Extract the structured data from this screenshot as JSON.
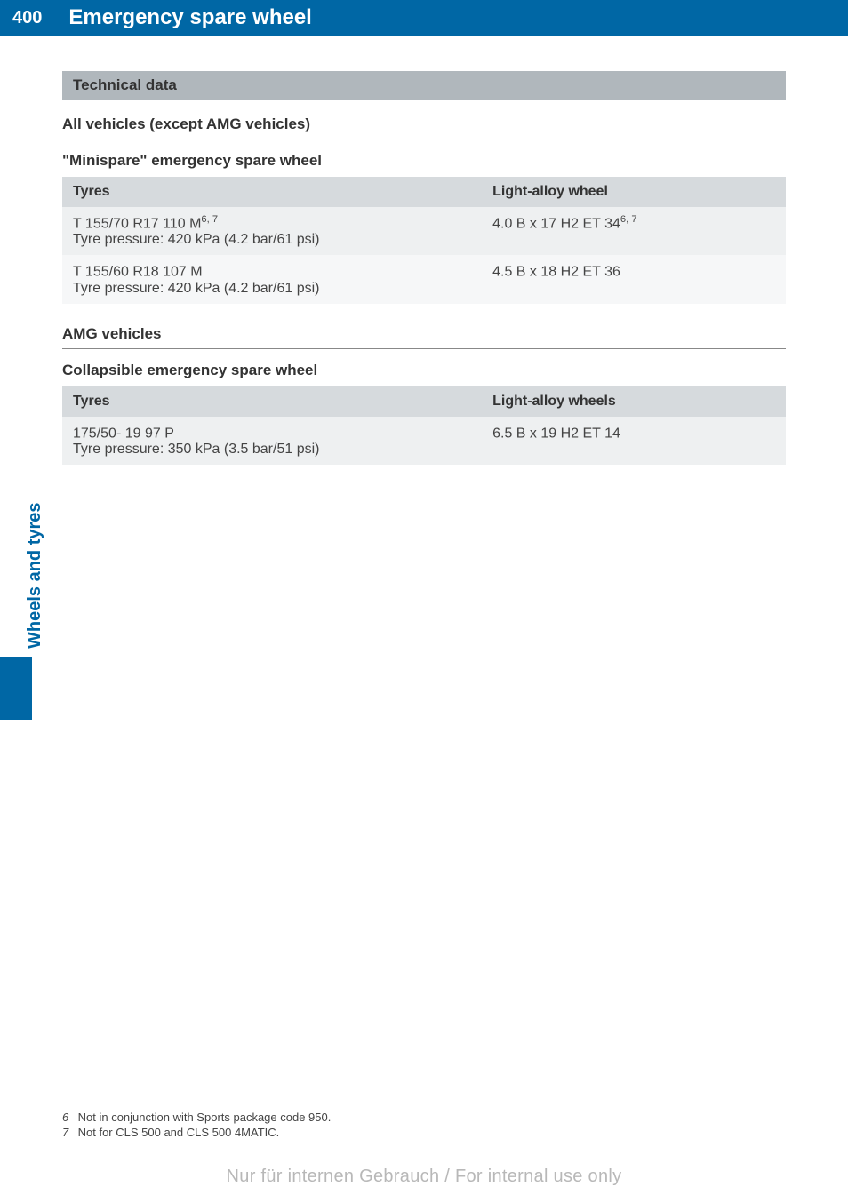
{
  "page": {
    "number": "400",
    "title": "Emergency spare wheel",
    "side_label": "Wheels and tyres",
    "watermark": "Nur für internen Gebrauch / For internal use only"
  },
  "technical_data": {
    "heading": "Technical data",
    "non_amg": {
      "title": "All vehicles (except AMG vehicles)",
      "table_title": "\"Minispare\" emergency spare wheel",
      "headers": {
        "tyres": "Tyres",
        "wheel": "Light-alloy wheel"
      },
      "rows": [
        {
          "tyre_spec_prefix": "T 155/70 R17 110 M",
          "tyre_spec_sup": "6, 7",
          "tyre_pressure": "Tyre pressure: 420 kPa (4.2 bar/61 psi)",
          "wheel_spec_prefix": "4.0 B x 17 H2 ET 34",
          "wheel_spec_sup": "6, 7"
        },
        {
          "tyre_spec_prefix": "T 155/60 R18 107 M",
          "tyre_spec_sup": "",
          "tyre_pressure": "Tyre pressure: 420 kPa (4.2 bar/61 psi)",
          "wheel_spec_prefix": "4.5 B x 18 H2 ET 36",
          "wheel_spec_sup": ""
        }
      ]
    },
    "amg": {
      "title": "AMG vehicles",
      "table_title": "Collapsible emergency spare wheel",
      "headers": {
        "tyres": "Tyres",
        "wheel": "Light-alloy wheels"
      },
      "rows": [
        {
          "tyre_spec_prefix": "175/50- 19 97 P",
          "tyre_spec_sup": "",
          "tyre_pressure": "Tyre pressure: 350 kPa (3.5 bar/51 psi)",
          "wheel_spec_prefix": "6.5 B x 19 H2 ET 14",
          "wheel_spec_sup": ""
        }
      ]
    }
  },
  "footnotes": [
    {
      "num": "6",
      "text": "Not in conjunction with Sports package code 950."
    },
    {
      "num": "7",
      "text": "Not for CLS 500 and CLS 500 4MATIC."
    }
  ]
}
